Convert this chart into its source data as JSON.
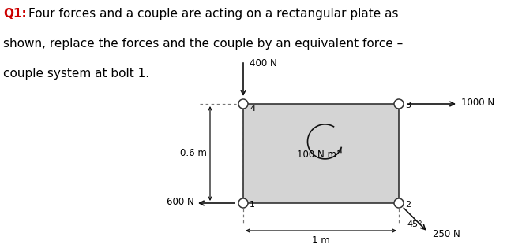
{
  "bg_color": "#ffffff",
  "plate_color": "#d4d4d4",
  "plate_edge": "#333333",
  "text_color": "#000000",
  "red_color": "#cc0000",
  "arrow_color": "#111111",
  "dash_color": "#777777",
  "force_400N": "400 N",
  "force_1000N": "1000 N",
  "force_600N": "600 N",
  "force_250N": "250 N",
  "couple_label": "100 N.m",
  "dim_06": "0.6 m",
  "dim_1m": "1 m",
  "angle_label": "45°",
  "q1_label": "Q1:",
  "line1_rest": "Four forces and a couple are acting on a rectangular plate as",
  "line2": "shown, replace the forces and the couple by an equivalent force –",
  "line3": "couple system at bolt 1.",
  "figw": 6.42,
  "figh": 3.15,
  "dpi": 100
}
